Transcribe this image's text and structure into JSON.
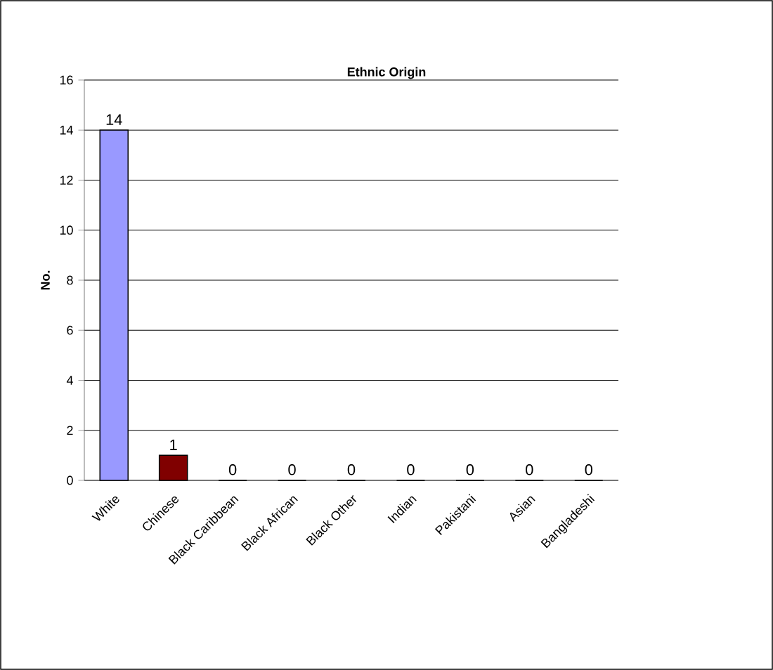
{
  "chart_data": {
    "type": "bar",
    "title": "Ethnic Origin",
    "ylabel": "No.",
    "categories": [
      "White",
      "Chinese",
      "Black Caribbean",
      "Black African",
      "Black Other",
      "Indian",
      "Pakistani",
      "Asian",
      "Bangladeshi"
    ],
    "values": [
      14,
      1,
      0,
      0,
      0,
      0,
      0,
      0,
      0
    ],
    "colors": [
      "#9999ff",
      "#800000",
      "#9999ff",
      "#9999ff",
      "#9999ff",
      "#9999ff",
      "#9999ff",
      "#9999ff",
      "#9999ff"
    ],
    "ylim": [
      0,
      16
    ],
    "yticks": [
      0,
      2,
      4,
      6,
      8,
      10,
      12,
      14,
      16
    ],
    "grid": "y",
    "data_labels": true
  }
}
